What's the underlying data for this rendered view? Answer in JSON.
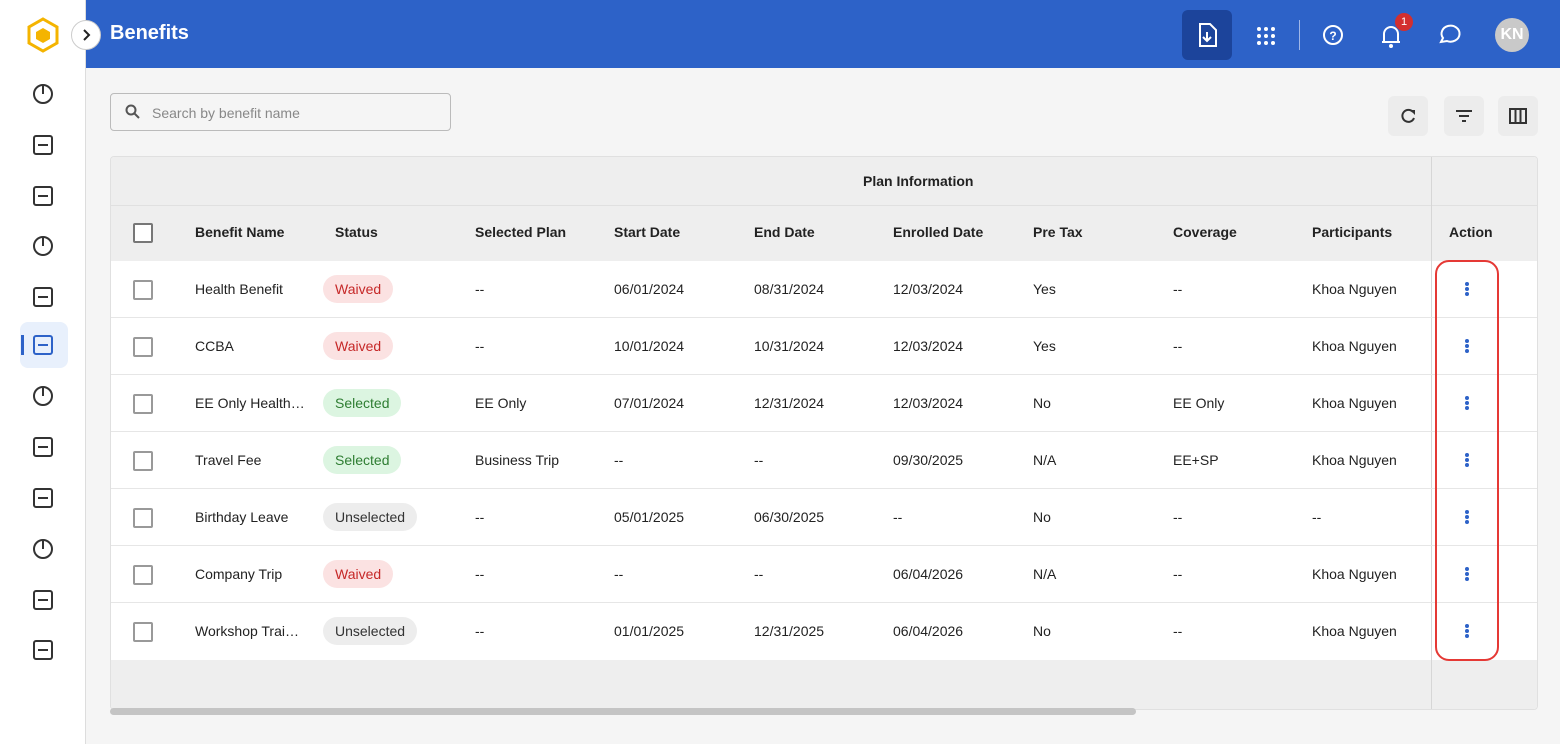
{
  "header": {
    "title": "Benefits",
    "notification_count": "1",
    "avatar": "KN"
  },
  "search": {
    "placeholder": "Search by benefit name"
  },
  "table": {
    "group_header": "Plan Information",
    "columns": [
      "Benefit Name",
      "Status",
      "Selected Plan",
      "Start Date",
      "End Date",
      "Enrolled Date",
      "Pre Tax",
      "Coverage",
      "Participants",
      "Action"
    ],
    "rows": [
      [
        "Health Benefit",
        {
          "label": "Waived",
          "background": "#fbe2e2",
          "color": "#c62828"
        },
        "--",
        "06/01/2024",
        "08/31/2024",
        "12/03/2024",
        "Yes",
        "--",
        "Khoa Nguyen"
      ],
      [
        "CCBA",
        {
          "label": "Waived",
          "background": "#fbe2e2",
          "color": "#c62828"
        },
        "--",
        "10/01/2024",
        "10/31/2024",
        "12/03/2024",
        "Yes",
        "--",
        "Khoa Nguyen"
      ],
      [
        "EE Only Health…",
        {
          "label": "Selected",
          "background": "#dcf5e1",
          "color": "#2e7d32"
        },
        "EE Only",
        "07/01/2024",
        "12/31/2024",
        "12/03/2024",
        "No",
        "EE Only",
        "Khoa Nguyen"
      ],
      [
        "Travel Fee",
        {
          "label": "Selected",
          "background": "#dcf5e1",
          "color": "#2e7d32"
        },
        "Business Trip",
        "--",
        "--",
        "09/30/2025",
        "N/A",
        "EE+SP",
        "Khoa Nguyen"
      ],
      [
        "Birthday Leave",
        {
          "label": "Unselected",
          "background": "#ededed",
          "color": "#333333"
        },
        "--",
        "05/01/2025",
        "06/30/2025",
        "--",
        "No",
        "--",
        "--"
      ],
      [
        "Company Trip",
        {
          "label": "Waived",
          "background": "#fbe2e2",
          "color": "#c62828"
        },
        "--",
        "--",
        "--",
        "06/04/2026",
        "N/A",
        "--",
        "Khoa Nguyen"
      ],
      [
        "Workshop Trai…",
        {
          "label": "Unselected",
          "background": "#ededed",
          "color": "#333333"
        },
        "--",
        "01/01/2025",
        "12/31/2025",
        "06/04/2026",
        "No",
        "--",
        "Khoa Nguyen"
      ]
    ]
  }
}
